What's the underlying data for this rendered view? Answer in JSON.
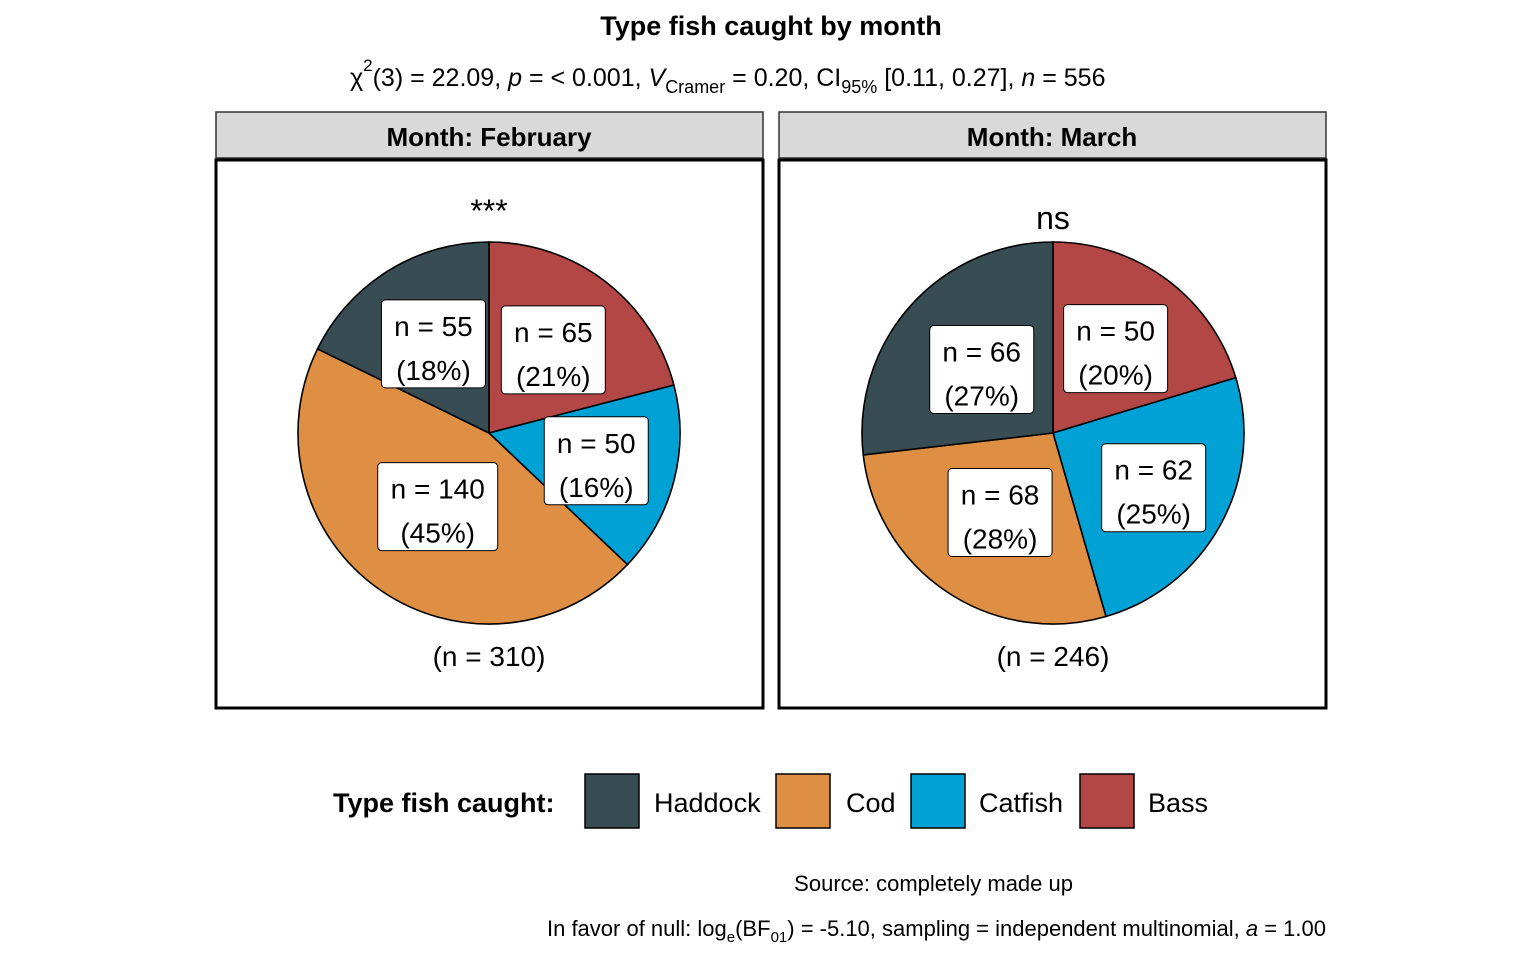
{
  "chart_data": {
    "type": "pie",
    "title": "Type fish caught by month",
    "subtitle": {
      "chi": "χ",
      "chi_sup": "2",
      "df": "(3) = 22.09, ",
      "p_sym": "p",
      "p_val": " = < 0.001, ",
      "v_sym": "V",
      "v_sub": "Cramer",
      "v_val": " = 0.20, CI",
      "ci_sub": "95%",
      "ci_val": " [0.11, 0.27], ",
      "n_sym": "n",
      "n_val": " = 556"
    },
    "categories": [
      "Haddock",
      "Cod",
      "Catfish",
      "Bass"
    ],
    "colors": {
      "Haddock": "#384C54",
      "Cod": "#DF8F44",
      "Catfish": "#00A1D5",
      "Bass": "#B24745"
    },
    "facets": [
      {
        "strip": "Month: February",
        "significance": "***",
        "total_label": "(n = 310)",
        "slices": [
          {
            "category": "Bass",
            "value": 65,
            "count_label": "n = 65",
            "pct_label": "(21%)"
          },
          {
            "category": "Catfish",
            "value": 50,
            "count_label": "n = 50",
            "pct_label": "(16%)"
          },
          {
            "category": "Cod",
            "value": 140,
            "count_label": "n = 140",
            "pct_label": "(45%)"
          },
          {
            "category": "Haddock",
            "value": 55,
            "count_label": "n = 55",
            "pct_label": "(18%)"
          }
        ]
      },
      {
        "strip": "Month: March",
        "significance": "ns",
        "total_label": "(n = 246)",
        "slices": [
          {
            "category": "Bass",
            "value": 50,
            "count_label": "n = 50",
            "pct_label": "(20%)"
          },
          {
            "category": "Catfish",
            "value": 62,
            "count_label": "n = 62",
            "pct_label": "(25%)"
          },
          {
            "category": "Cod",
            "value": 68,
            "count_label": "n = 68",
            "pct_label": "(28%)"
          },
          {
            "category": "Haddock",
            "value": 66,
            "count_label": "n = 66",
            "pct_label": "(27%)"
          }
        ]
      }
    ],
    "legend": {
      "title": "Type fish caught:",
      "position": "bottom",
      "items": [
        "Haddock",
        "Cod",
        "Catfish",
        "Bass"
      ]
    },
    "caption": {
      "source": "Source: completely made up",
      "bf_pre": "In favor of null: log",
      "bf_e": "e",
      "bf_mid": "(BF",
      "bf_sub": "01",
      "bf_post": ") = -5.10, sampling = independent multinomial, ",
      "a_sym": "a",
      "a_val": " = 1.00"
    }
  }
}
